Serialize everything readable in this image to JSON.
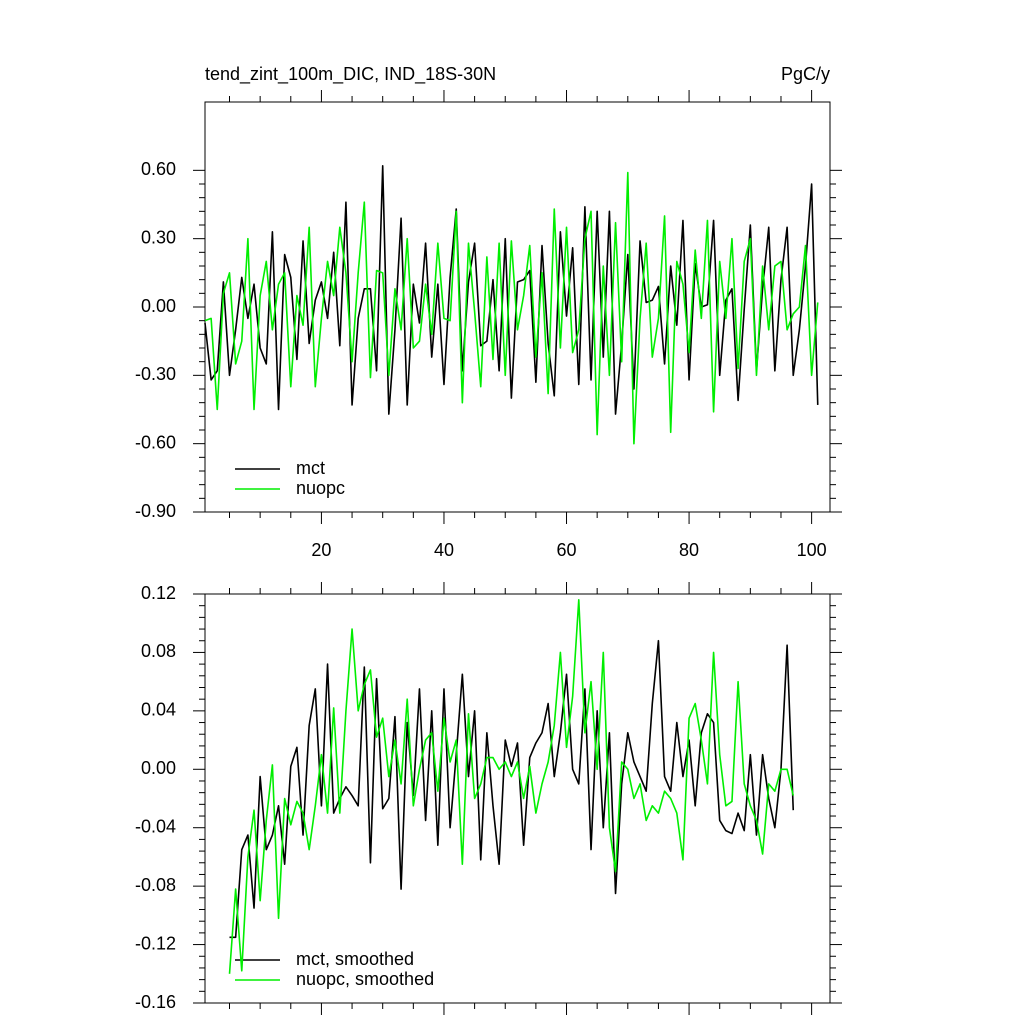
{
  "chart_data": [
    {
      "type": "line",
      "title": "tend_zint_100m_DIC, IND_18S-30N",
      "subtitle": "PgC/y",
      "x": [
        1,
        2,
        3,
        4,
        5,
        6,
        7,
        8,
        9,
        10,
        11,
        12,
        13,
        14,
        15,
        16,
        17,
        18,
        19,
        20,
        21,
        22,
        23,
        24,
        25,
        26,
        27,
        28,
        29,
        30,
        31,
        32,
        33,
        34,
        35,
        36,
        37,
        38,
        39,
        40,
        41,
        42,
        43,
        44,
        45,
        46,
        47,
        48,
        49,
        50,
        51,
        52,
        53,
        54,
        55,
        56,
        57,
        58,
        59,
        60,
        61,
        62,
        63,
        64,
        65,
        66,
        67,
        68,
        69,
        70,
        71,
        72,
        73,
        74,
        75,
        76,
        77,
        78,
        79,
        80,
        81,
        82,
        83,
        84,
        85,
        86,
        87,
        88,
        89,
        90,
        91,
        92,
        93,
        94,
        95,
        96,
        97,
        98,
        99,
        100,
        101
      ],
      "series": [
        {
          "name": "mct",
          "color": "#000000",
          "values": [
            -0.07,
            -0.32,
            -0.28,
            0.11,
            -0.3,
            -0.1,
            0.13,
            -0.05,
            0.1,
            -0.18,
            -0.25,
            0.33,
            -0.45,
            0.23,
            0.13,
            -0.23,
            0.29,
            -0.16,
            0.03,
            0.11,
            -0.05,
            0.24,
            -0.17,
            0.46,
            -0.43,
            -0.05,
            0.08,
            0.08,
            -0.28,
            0.62,
            -0.47,
            -0.1,
            0.39,
            -0.43,
            0.1,
            -0.07,
            0.28,
            -0.22,
            0.1,
            -0.34,
            0.13,
            0.43,
            -0.28,
            0.11,
            0.28,
            -0.17,
            -0.15,
            0.12,
            -0.28,
            0.3,
            -0.4,
            0.11,
            0.12,
            0.16,
            -0.33,
            0.27,
            -0.16,
            -0.39,
            0.33,
            -0.04,
            0.26,
            -0.34,
            0.44,
            -0.32,
            0.42,
            -0.22,
            0.42,
            -0.47,
            -0.16,
            0.23,
            -0.36,
            0.29,
            0.02,
            0.03,
            0.09,
            -0.25,
            0.18,
            -0.08,
            0.38,
            -0.32,
            0.19,
            0.0,
            0.01,
            0.38,
            -0.3,
            0.03,
            0.08,
            -0.41,
            -0.01,
            0.36,
            -0.28,
            0.08,
            0.35,
            -0.28,
            0.12,
            0.35,
            -0.3,
            -0.1,
            0.18,
            0.54,
            -0.43
          ]
        },
        {
          "name": "nuopc",
          "color": "#00ee00",
          "values": [
            -0.06,
            -0.05,
            -0.45,
            0.06,
            0.15,
            -0.25,
            -0.15,
            0.3,
            -0.45,
            0.05,
            0.2,
            -0.1,
            0.1,
            0.15,
            -0.35,
            0.05,
            -0.08,
            0.35,
            -0.35,
            -0.05,
            0.2,
            0.05,
            0.35,
            0.15,
            -0.24,
            0.15,
            0.46,
            -0.31,
            0.16,
            0.15,
            -0.3,
            0.08,
            -0.1,
            0.3,
            -0.18,
            -0.15,
            0.1,
            -0.12,
            0.28,
            -0.05,
            -0.06,
            0.42,
            -0.42,
            0.28,
            -0.02,
            -0.35,
            0.22,
            -0.23,
            0.28,
            -0.3,
            0.29,
            -0.1,
            0.05,
            0.27,
            -0.22,
            0.15,
            -0.38,
            0.43,
            -0.18,
            0.35,
            -0.2,
            -0.1,
            0.3,
            0.42,
            -0.56,
            0.18,
            -0.3,
            0.37,
            -0.24,
            0.59,
            -0.6,
            -0.05,
            0.28,
            -0.22,
            -0.05,
            0.4,
            -0.55,
            0.2,
            0.1,
            -0.2,
            0.25,
            -0.05,
            0.38,
            -0.46,
            0.2,
            -0.05,
            0.3,
            -0.27,
            0.2,
            0.3,
            -0.3,
            0.18,
            -0.1,
            0.18,
            0.2,
            -0.1,
            -0.03,
            0.0,
            0.27,
            -0.3,
            0.02
          ]
        }
      ],
      "xlim": [
        1,
        103
      ],
      "xticks": [
        20,
        40,
        60,
        80,
        100
      ],
      "ylim": [
        -0.9,
        0.9
      ],
      "yticks": [
        {
          "value": -0.9,
          "label": "-0.90"
        },
        {
          "value": -0.6,
          "label": "-0.60"
        },
        {
          "value": -0.3,
          "label": "-0.30"
        },
        {
          "value": 0,
          "label": "0.00"
        },
        {
          "value": 0.3,
          "label": "0.30"
        },
        {
          "value": 0.6,
          "label": "0.60"
        }
      ],
      "legend": "lower left"
    },
    {
      "type": "line",
      "x": [
        5,
        6,
        7,
        8,
        9,
        10,
        11,
        12,
        13,
        14,
        15,
        16,
        17,
        18,
        19,
        20,
        21,
        22,
        23,
        24,
        25,
        26,
        27,
        28,
        29,
        30,
        31,
        32,
        33,
        34,
        35,
        36,
        37,
        38,
        39,
        40,
        41,
        42,
        43,
        44,
        45,
        46,
        47,
        48,
        49,
        50,
        51,
        52,
        53,
        54,
        55,
        56,
        57,
        58,
        59,
        60,
        61,
        62,
        63,
        64,
        65,
        66,
        67,
        68,
        69,
        70,
        71,
        72,
        73,
        74,
        75,
        76,
        77,
        78,
        79,
        80,
        81,
        82,
        83,
        84,
        85,
        86,
        87,
        88,
        89,
        90,
        91,
        92,
        93,
        94,
        95,
        96,
        97
      ],
      "series": [
        {
          "name": "mct, smoothed",
          "color": "#000000",
          "values": [
            -0.115,
            -0.115,
            -0.055,
            -0.045,
            -0.095,
            -0.005,
            -0.055,
            -0.045,
            -0.025,
            -0.065,
            0.002,
            0.015,
            -0.045,
            0.03,
            0.055,
            -0.025,
            0.072,
            -0.03,
            -0.02,
            -0.012,
            -0.018,
            -0.025,
            0.07,
            -0.064,
            0.062,
            -0.027,
            -0.02,
            0.036,
            -0.082,
            0.032,
            -0.018,
            0.055,
            -0.035,
            0.04,
            -0.052,
            0.055,
            -0.04,
            0.01,
            0.065,
            -0.005,
            0.04,
            -0.062,
            0.025,
            -0.025,
            -0.065,
            0.02,
            0.002,
            0.018,
            -0.052,
            0.008,
            0.018,
            0.025,
            0.045,
            -0.005,
            0.025,
            0.065,
            0.0,
            -0.01,
            0.055,
            -0.055,
            0.04,
            -0.04,
            0.025,
            -0.085,
            -0.01,
            0.025,
            0.005,
            -0.005,
            -0.015,
            0.045,
            0.088,
            -0.005,
            -0.015,
            0.032,
            -0.005,
            0.02,
            -0.025,
            0.025,
            0.038,
            0.032,
            -0.035,
            -0.042,
            -0.044,
            -0.03,
            -0.042,
            0.01,
            -0.045,
            0.01,
            -0.02,
            -0.04,
            0.0,
            0.085,
            -0.028
          ]
        },
        {
          "name": "nuopc, smoothed",
          "color": "#00ee00",
          "values": [
            -0.14,
            -0.082,
            -0.138,
            -0.06,
            -0.028,
            -0.09,
            -0.035,
            0.003,
            -0.102,
            -0.02,
            -0.038,
            -0.022,
            -0.03,
            -0.055,
            -0.025,
            0.01,
            -0.03,
            0.042,
            -0.03,
            0.04,
            0.096,
            0.04,
            0.058,
            0.068,
            0.022,
            0.035,
            -0.005,
            0.02,
            -0.01,
            0.048,
            -0.025,
            0.0,
            0.02,
            0.025,
            -0.015,
            0.035,
            0.005,
            0.02,
            -0.065,
            0.038,
            -0.02,
            -0.01,
            0.008,
            0.008,
            0.0,
            0.005,
            -0.005,
            0.005,
            -0.02,
            0.002,
            -0.03,
            -0.01,
            0.005,
            0.03,
            0.08,
            0.015,
            0.05,
            0.116,
            0.025,
            0.06,
            0.0,
            0.08,
            -0.04,
            -0.07,
            0.005,
            0.0,
            -0.02,
            -0.01,
            -0.035,
            -0.025,
            -0.03,
            -0.015,
            -0.02,
            -0.03,
            -0.062,
            0.035,
            0.045,
            0.02,
            -0.01,
            0.08,
            0.01,
            -0.025,
            -0.022,
            0.06,
            -0.01,
            -0.025,
            -0.035,
            -0.058,
            -0.01,
            -0.015,
            0.0,
            0.0,
            -0.018
          ]
        }
      ],
      "xlim": [
        1,
        103
      ],
      "xticks": [
        20,
        40,
        60,
        80,
        100
      ],
      "ylim": [
        -0.16,
        0.12
      ],
      "yticks": [
        {
          "value": -0.16,
          "label": "-0.16"
        },
        {
          "value": -0.12,
          "label": "-0.12"
        },
        {
          "value": -0.08,
          "label": "-0.08"
        },
        {
          "value": -0.04,
          "label": "-0.04"
        },
        {
          "value": 0,
          "label": "0.00"
        },
        {
          "value": 0.04,
          "label": "0.04"
        },
        {
          "value": 0.08,
          "label": "0.08"
        },
        {
          "value": 0.12,
          "label": "0.12"
        }
      ],
      "legend": "lower left"
    }
  ]
}
